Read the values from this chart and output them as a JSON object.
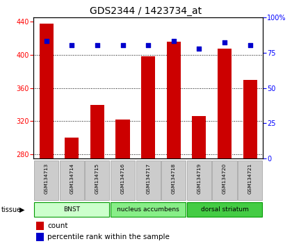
{
  "title": "GDS2344 / 1423734_at",
  "samples": [
    "GSM134713",
    "GSM134714",
    "GSM134715",
    "GSM134716",
    "GSM134717",
    "GSM134718",
    "GSM134719",
    "GSM134720",
    "GSM134721"
  ],
  "counts": [
    437,
    300,
    340,
    322,
    398,
    416,
    326,
    407,
    370
  ],
  "percentiles": [
    83,
    80,
    80,
    80,
    80,
    83,
    78,
    82,
    80
  ],
  "ylim_left": [
    275,
    445
  ],
  "ylim_right": [
    0,
    100
  ],
  "yticks_left": [
    280,
    320,
    360,
    400,
    440
  ],
  "yticks_right": [
    0,
    25,
    50,
    75,
    100
  ],
  "grid_values": [
    280,
    320,
    360,
    400
  ],
  "tissue_groups": [
    {
      "label": "BNST",
      "start": 0,
      "end": 2,
      "color": "#ccffcc"
    },
    {
      "label": "nucleus accumbens",
      "start": 3,
      "end": 5,
      "color": "#88ee88"
    },
    {
      "label": "dorsal striatum",
      "start": 6,
      "end": 8,
      "color": "#44cc44"
    }
  ],
  "bar_color": "#cc0000",
  "scatter_color": "#0000cc",
  "bar_width": 0.55,
  "background_color": "#ffffff",
  "sample_box_color": "#cccccc",
  "tissue_label": "tissue",
  "legend_count_label": "count",
  "legend_pct_label": "percentile rank within the sample"
}
